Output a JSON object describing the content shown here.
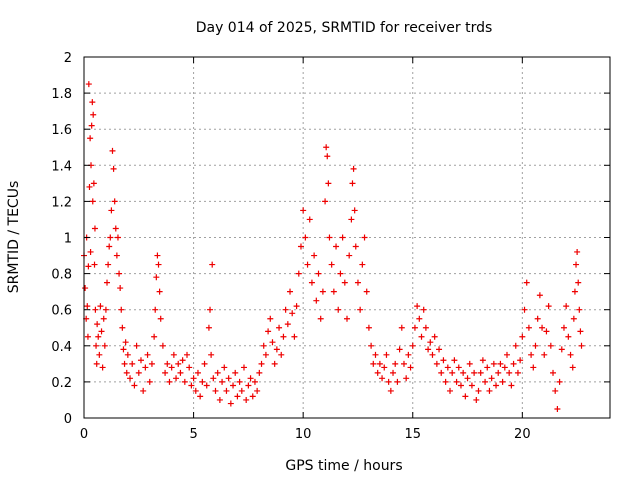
{
  "chart_data": {
    "type": "scatter",
    "title": "Day 014 of 2025, SRMTID for receiver trds",
    "xlabel": "GPS time / hours",
    "ylabel": "SRMTID / TECUs",
    "xlim": [
      0,
      24
    ],
    "ylim": [
      0,
      2
    ],
    "xticks": [
      0,
      5,
      10,
      15,
      20
    ],
    "yticks": [
      0,
      0.2,
      0.4,
      0.6,
      0.8,
      1,
      1.2,
      1.4,
      1.6,
      1.8,
      2
    ],
    "xtick_labels": [
      "0",
      "5",
      "10",
      "15",
      "20"
    ],
    "ytick_labels": [
      "0",
      "0.2",
      "0.4",
      "0.6",
      "0.8",
      "1",
      "1.2",
      "1.4",
      "1.6",
      "1.8",
      "2"
    ],
    "grid": true,
    "marker": "+",
    "color": "#ee0000",
    "series": [
      {
        "name": "SRMTID",
        "points": [
          [
            0.0,
            0.9
          ],
          [
            0.05,
            0.72
          ],
          [
            0.1,
            0.55
          ],
          [
            0.12,
            1.0
          ],
          [
            0.15,
            0.62
          ],
          [
            0.18,
            0.45
          ],
          [
            0.2,
            0.84
          ],
          [
            0.22,
            1.85
          ],
          [
            0.25,
            1.28
          ],
          [
            0.28,
            1.55
          ],
          [
            0.3,
            0.92
          ],
          [
            0.32,
            1.4
          ],
          [
            0.35,
            1.62
          ],
          [
            0.38,
            1.75
          ],
          [
            0.4,
            1.2
          ],
          [
            0.42,
            1.68
          ],
          [
            0.45,
            1.3
          ],
          [
            0.48,
            0.85
          ],
          [
            0.5,
            1.05
          ],
          [
            0.52,
            0.6
          ],
          [
            0.55,
            0.4
          ],
          [
            0.58,
            0.3
          ],
          [
            0.6,
            0.52
          ],
          [
            0.65,
            0.45
          ],
          [
            0.7,
            0.35
          ],
          [
            0.75,
            0.62
          ],
          [
            0.8,
            0.48
          ],
          [
            0.85,
            0.28
          ],
          [
            0.9,
            0.55
          ],
          [
            0.95,
            0.4
          ],
          [
            1.0,
            0.6
          ],
          [
            1.05,
            0.75
          ],
          [
            1.1,
            0.85
          ],
          [
            1.15,
            0.95
          ],
          [
            1.2,
            1.0
          ],
          [
            1.25,
            1.15
          ],
          [
            1.3,
            1.48
          ],
          [
            1.35,
            1.38
          ],
          [
            1.4,
            1.2
          ],
          [
            1.45,
            1.05
          ],
          [
            1.5,
            0.9
          ],
          [
            1.55,
            1.0
          ],
          [
            1.6,
            0.8
          ],
          [
            1.65,
            0.72
          ],
          [
            1.7,
            0.6
          ],
          [
            1.75,
            0.5
          ],
          [
            1.8,
            0.38
          ],
          [
            1.85,
            0.3
          ],
          [
            1.9,
            0.42
          ],
          [
            1.95,
            0.25
          ],
          [
            2.0,
            0.35
          ],
          [
            2.1,
            0.22
          ],
          [
            2.2,
            0.3
          ],
          [
            2.3,
            0.18
          ],
          [
            2.4,
            0.4
          ],
          [
            2.5,
            0.25
          ],
          [
            2.6,
            0.32
          ],
          [
            2.7,
            0.15
          ],
          [
            2.8,
            0.28
          ],
          [
            2.9,
            0.35
          ],
          [
            3.0,
            0.2
          ],
          [
            3.1,
            0.3
          ],
          [
            3.2,
            0.45
          ],
          [
            3.25,
            0.6
          ],
          [
            3.3,
            0.78
          ],
          [
            3.35,
            0.9
          ],
          [
            3.4,
            0.85
          ],
          [
            3.45,
            0.7
          ],
          [
            3.5,
            0.55
          ],
          [
            3.6,
            0.4
          ],
          [
            3.7,
            0.25
          ],
          [
            3.8,
            0.3
          ],
          [
            3.9,
            0.2
          ],
          [
            4.0,
            0.28
          ],
          [
            4.1,
            0.35
          ],
          [
            4.2,
            0.22
          ],
          [
            4.3,
            0.3
          ],
          [
            4.4,
            0.25
          ],
          [
            4.5,
            0.32
          ],
          [
            4.6,
            0.2
          ],
          [
            4.7,
            0.35
          ],
          [
            4.8,
            0.28
          ],
          [
            4.9,
            0.18
          ],
          [
            5.0,
            0.22
          ],
          [
            5.1,
            0.15
          ],
          [
            5.2,
            0.25
          ],
          [
            5.3,
            0.12
          ],
          [
            5.4,
            0.2
          ],
          [
            5.5,
            0.3
          ],
          [
            5.6,
            0.18
          ],
          [
            5.7,
            0.5
          ],
          [
            5.75,
            0.6
          ],
          [
            5.8,
            0.35
          ],
          [
            5.85,
            0.85
          ],
          [
            5.9,
            0.22
          ],
          [
            6.0,
            0.15
          ],
          [
            6.1,
            0.25
          ],
          [
            6.2,
            0.1
          ],
          [
            6.3,
            0.2
          ],
          [
            6.4,
            0.28
          ],
          [
            6.5,
            0.15
          ],
          [
            6.6,
            0.22
          ],
          [
            6.7,
            0.08
          ],
          [
            6.8,
            0.18
          ],
          [
            6.9,
            0.25
          ],
          [
            7.0,
            0.12
          ],
          [
            7.1,
            0.2
          ],
          [
            7.2,
            0.15
          ],
          [
            7.3,
            0.28
          ],
          [
            7.4,
            0.1
          ],
          [
            7.5,
            0.18
          ],
          [
            7.6,
            0.22
          ],
          [
            7.7,
            0.12
          ],
          [
            7.8,
            0.2
          ],
          [
            7.9,
            0.15
          ],
          [
            8.0,
            0.25
          ],
          [
            8.1,
            0.3
          ],
          [
            8.2,
            0.4
          ],
          [
            8.3,
            0.35
          ],
          [
            8.4,
            0.48
          ],
          [
            8.5,
            0.55
          ],
          [
            8.6,
            0.42
          ],
          [
            8.7,
            0.3
          ],
          [
            8.8,
            0.38
          ],
          [
            8.9,
            0.5
          ],
          [
            9.0,
            0.35
          ],
          [
            9.1,
            0.45
          ],
          [
            9.2,
            0.6
          ],
          [
            9.3,
            0.52
          ],
          [
            9.4,
            0.7
          ],
          [
            9.5,
            0.58
          ],
          [
            9.6,
            0.45
          ],
          [
            9.7,
            0.62
          ],
          [
            9.8,
            0.8
          ],
          [
            9.9,
            0.95
          ],
          [
            10.0,
            1.15
          ],
          [
            10.1,
            1.0
          ],
          [
            10.2,
            0.85
          ],
          [
            10.3,
            1.1
          ],
          [
            10.4,
            0.75
          ],
          [
            10.5,
            0.9
          ],
          [
            10.6,
            0.65
          ],
          [
            10.7,
            0.8
          ],
          [
            10.8,
            0.55
          ],
          [
            10.9,
            0.7
          ],
          [
            11.0,
            1.2
          ],
          [
            11.05,
            1.5
          ],
          [
            11.1,
            1.45
          ],
          [
            11.15,
            1.3
          ],
          [
            11.2,
            1.0
          ],
          [
            11.3,
            0.85
          ],
          [
            11.4,
            0.7
          ],
          [
            11.5,
            0.95
          ],
          [
            11.6,
            0.6
          ],
          [
            11.7,
            0.8
          ],
          [
            11.8,
            1.0
          ],
          [
            11.9,
            0.75
          ],
          [
            12.0,
            0.55
          ],
          [
            12.1,
            0.9
          ],
          [
            12.2,
            1.1
          ],
          [
            12.25,
            1.3
          ],
          [
            12.3,
            1.38
          ],
          [
            12.35,
            1.15
          ],
          [
            12.4,
            0.95
          ],
          [
            12.5,
            0.75
          ],
          [
            12.6,
            0.6
          ],
          [
            12.7,
            0.85
          ],
          [
            12.8,
            1.0
          ],
          [
            12.9,
            0.7
          ],
          [
            13.0,
            0.5
          ],
          [
            13.1,
            0.4
          ],
          [
            13.2,
            0.3
          ],
          [
            13.3,
            0.35
          ],
          [
            13.4,
            0.25
          ],
          [
            13.5,
            0.3
          ],
          [
            13.6,
            0.22
          ],
          [
            13.7,
            0.28
          ],
          [
            13.8,
            0.35
          ],
          [
            13.9,
            0.2
          ],
          [
            14.0,
            0.15
          ],
          [
            14.1,
            0.25
          ],
          [
            14.2,
            0.3
          ],
          [
            14.3,
            0.2
          ],
          [
            14.4,
            0.38
          ],
          [
            14.5,
            0.5
          ],
          [
            14.6,
            0.3
          ],
          [
            14.7,
            0.22
          ],
          [
            14.8,
            0.35
          ],
          [
            14.9,
            0.28
          ],
          [
            15.0,
            0.4
          ],
          [
            15.1,
            0.5
          ],
          [
            15.2,
            0.62
          ],
          [
            15.3,
            0.55
          ],
          [
            15.4,
            0.45
          ],
          [
            15.5,
            0.6
          ],
          [
            15.6,
            0.5
          ],
          [
            15.7,
            0.38
          ],
          [
            15.8,
            0.42
          ],
          [
            15.9,
            0.35
          ],
          [
            16.0,
            0.45
          ],
          [
            16.1,
            0.3
          ],
          [
            16.2,
            0.38
          ],
          [
            16.3,
            0.25
          ],
          [
            16.4,
            0.32
          ],
          [
            16.5,
            0.2
          ],
          [
            16.6,
            0.28
          ],
          [
            16.7,
            0.15
          ],
          [
            16.8,
            0.25
          ],
          [
            16.9,
            0.32
          ],
          [
            17.0,
            0.2
          ],
          [
            17.1,
            0.28
          ],
          [
            17.2,
            0.18
          ],
          [
            17.3,
            0.25
          ],
          [
            17.4,
            0.12
          ],
          [
            17.5,
            0.22
          ],
          [
            17.6,
            0.3
          ],
          [
            17.7,
            0.18
          ],
          [
            17.8,
            0.25
          ],
          [
            17.9,
            0.1
          ],
          [
            18.0,
            0.15
          ],
          [
            18.1,
            0.25
          ],
          [
            18.2,
            0.32
          ],
          [
            18.3,
            0.2
          ],
          [
            18.4,
            0.28
          ],
          [
            18.5,
            0.15
          ],
          [
            18.6,
            0.22
          ],
          [
            18.7,
            0.3
          ],
          [
            18.8,
            0.18
          ],
          [
            18.9,
            0.25
          ],
          [
            19.0,
            0.3
          ],
          [
            19.1,
            0.2
          ],
          [
            19.2,
            0.28
          ],
          [
            19.3,
            0.35
          ],
          [
            19.4,
            0.25
          ],
          [
            19.5,
            0.18
          ],
          [
            19.6,
            0.3
          ],
          [
            19.7,
            0.4
          ],
          [
            19.8,
            0.25
          ],
          [
            19.9,
            0.32
          ],
          [
            20.0,
            0.45
          ],
          [
            20.1,
            0.6
          ],
          [
            20.2,
            0.75
          ],
          [
            20.3,
            0.5
          ],
          [
            20.4,
            0.35
          ],
          [
            20.5,
            0.28
          ],
          [
            20.6,
            0.4
          ],
          [
            20.7,
            0.55
          ],
          [
            20.8,
            0.68
          ],
          [
            20.9,
            0.5
          ],
          [
            21.0,
            0.35
          ],
          [
            21.1,
            0.48
          ],
          [
            21.2,
            0.62
          ],
          [
            21.3,
            0.4
          ],
          [
            21.4,
            0.25
          ],
          [
            21.5,
            0.15
          ],
          [
            21.6,
            0.05
          ],
          [
            21.7,
            0.2
          ],
          [
            21.8,
            0.38
          ],
          [
            21.9,
            0.5
          ],
          [
            22.0,
            0.62
          ],
          [
            22.1,
            0.45
          ],
          [
            22.2,
            0.35
          ],
          [
            22.3,
            0.28
          ],
          [
            22.35,
            0.55
          ],
          [
            22.4,
            0.7
          ],
          [
            22.45,
            0.85
          ],
          [
            22.5,
            0.92
          ],
          [
            22.55,
            0.75
          ],
          [
            22.6,
            0.6
          ],
          [
            22.65,
            0.48
          ],
          [
            22.7,
            0.4
          ]
        ]
      }
    ]
  }
}
